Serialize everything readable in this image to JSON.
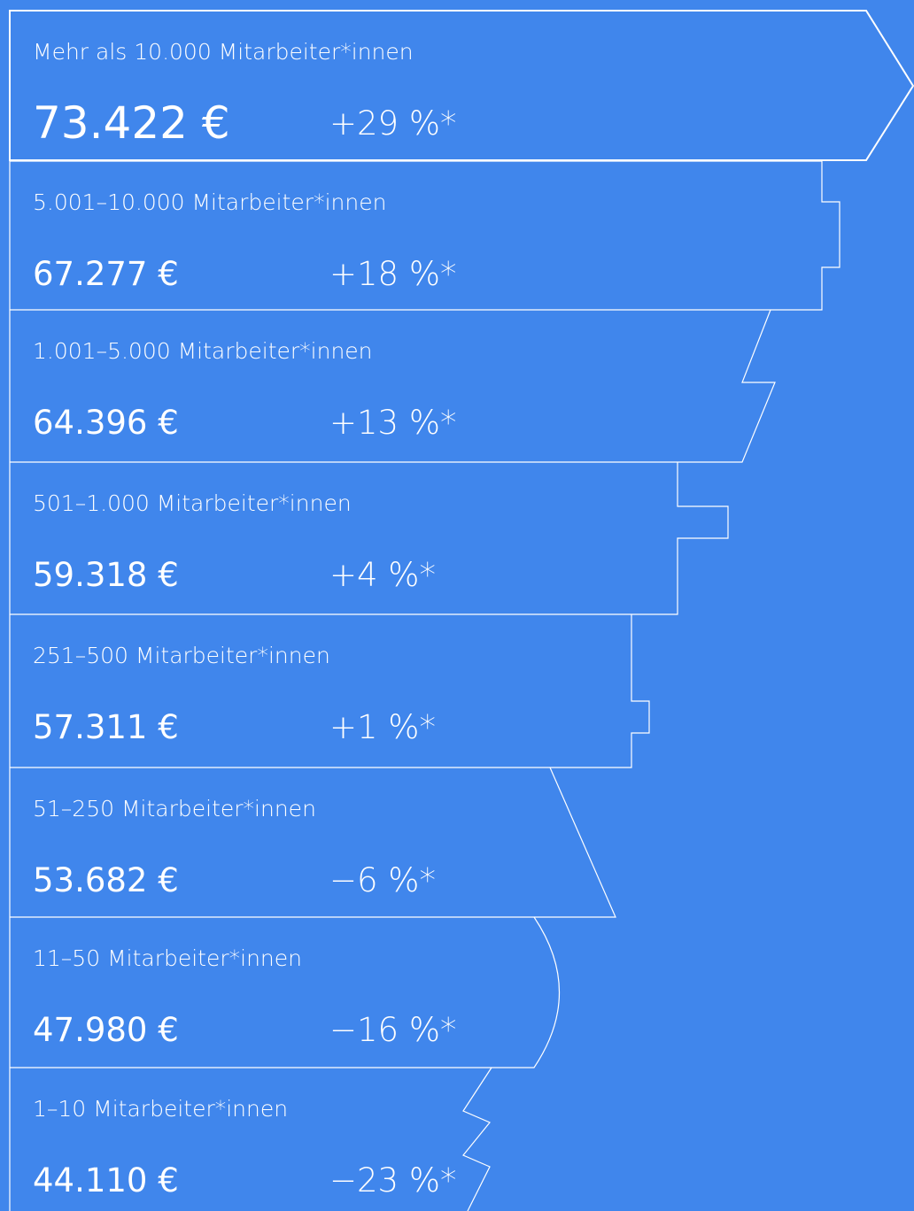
{
  "rows": [
    {
      "label": "Mehr als 10.000 Mitarbeiter*innen",
      "value": "73.422 €",
      "change": "+29 %*"
    },
    {
      "label": "5.001–10.000 Mitarbeiter*innen",
      "value": "67.277 €",
      "change": "+18 %*"
    },
    {
      "label": "1.001–5.000 Mitarbeiter*innen",
      "value": "64.396 €",
      "change": "+13 %*"
    },
    {
      "label": "501–1.000 Mitarbeiter*innen",
      "value": "59.318 €",
      "change": "+4 %*"
    },
    {
      "label": "251–500 Mitarbeiter*innen",
      "value": "57.311 €",
      "change": "+1 %*"
    },
    {
      "label": "51–250 Mitarbeiter*innen",
      "value": "53.682 €",
      "change": "−6 %*"
    },
    {
      "label": "11–50 Mitarbeiter*innen",
      "value": "47.980 €",
      "change": "−16 %*"
    },
    {
      "label": "1–10 Mitarbeiter*innen",
      "value": "44.110 €",
      "change": "−23 %*"
    }
  ]
}
